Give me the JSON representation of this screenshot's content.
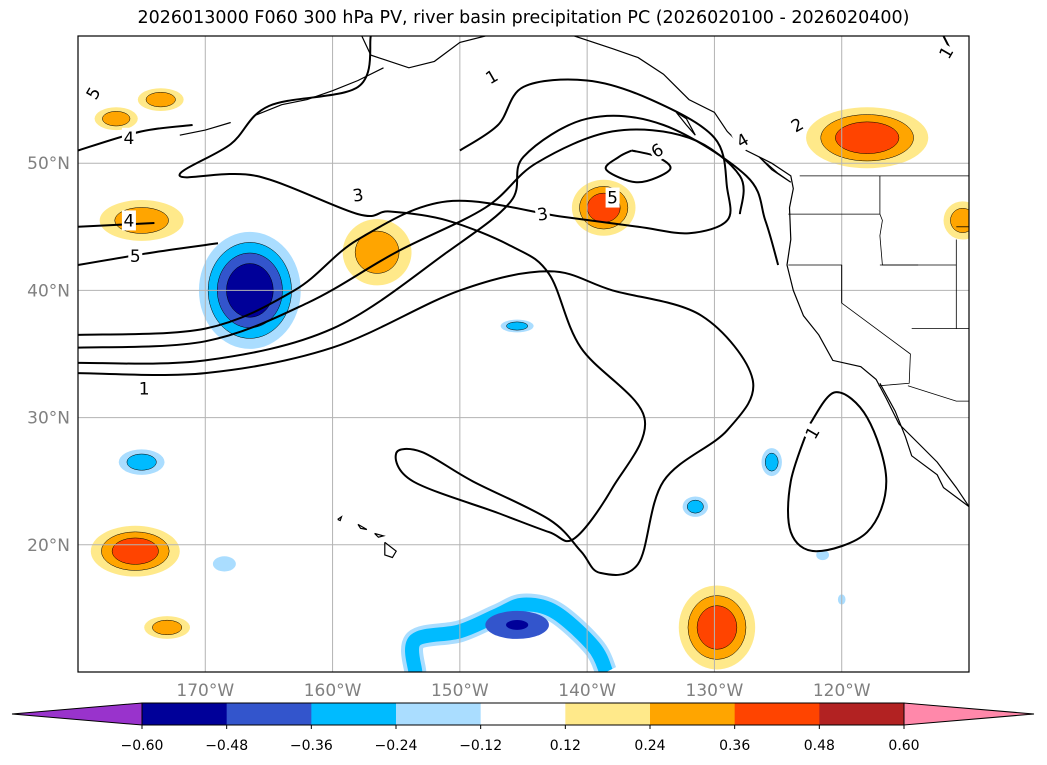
{
  "title": "2026013000 F060 300 hPa PV, river basin precipitation PC (2026020100 - 2026020400)",
  "axes": {
    "lon_min": -180,
    "lon_max": -110,
    "lat_min": 10,
    "lat_max": 60,
    "x_ticks": [
      {
        "value": -170,
        "label": "170°W"
      },
      {
        "value": -160,
        "label": "160°W"
      },
      {
        "value": -150,
        "label": "150°W"
      },
      {
        "value": -140,
        "label": "140°W"
      },
      {
        "value": -130,
        "label": "130°W"
      },
      {
        "value": -120,
        "label": "120°W"
      }
    ],
    "y_ticks": [
      {
        "value": 20,
        "label": "20°N"
      },
      {
        "value": 30,
        "label": "30°N"
      },
      {
        "value": 40,
        "label": "40°N"
      },
      {
        "value": 50,
        "label": "50°N"
      }
    ],
    "grid": true,
    "grid_color": "#b3b3b3"
  },
  "colorbar": {
    "colors": [
      "#9933cc",
      "#000099",
      "#3355cc",
      "#00bbff",
      "#aaddff",
      "#ffffff",
      "#ffe98a",
      "#ffa500",
      "#ff4400",
      "#b22222",
      "#ff88aa"
    ],
    "labels": [
      "−0.60",
      "−0.48",
      "−0.36",
      "−0.24",
      "−0.12",
      "0.12",
      "0.24",
      "0.36",
      "0.48",
      "0.60"
    ]
  },
  "chart_data": {
    "type": "contour_map",
    "pv_contour_labels": [
      {
        "text": "1",
        "lon": -147.5,
        "lat": 56.8,
        "rot": -30
      },
      {
        "text": "2",
        "lon": -123.5,
        "lat": 53.0,
        "rot": -30
      },
      {
        "text": "3",
        "lon": -158.0,
        "lat": 47.5,
        "rot": -8
      },
      {
        "text": "3",
        "lon": -143.5,
        "lat": 46.0,
        "rot": -8
      },
      {
        "text": "4",
        "lon": -176.0,
        "lat": 52.0,
        "rot": 0
      },
      {
        "text": "4",
        "lon": -176.0,
        "lat": 45.5,
        "rot": 0
      },
      {
        "text": "4",
        "lon": -127.8,
        "lat": 51.8,
        "rot": -30
      },
      {
        "text": "5",
        "lon": -175.5,
        "lat": 42.7,
        "rot": 0
      },
      {
        "text": "5",
        "lon": -138.0,
        "lat": 47.3,
        "rot": 0
      },
      {
        "text": "6",
        "lon": -134.5,
        "lat": 51.0,
        "rot": -30
      },
      {
        "text": "1",
        "lon": -174.8,
        "lat": 32.3,
        "rot": 0
      },
      {
        "text": "1",
        "lon": -122.3,
        "lat": 28.8,
        "rot": -60
      },
      {
        "text": "5",
        "lon": -178.8,
        "lat": 55.5,
        "rot": -60
      },
      {
        "text": "1",
        "lon": -111.8,
        "lat": 58.7,
        "rot": -60
      }
    ],
    "pv_contours": [
      [
        [
          -180,
          33.5
        ],
        [
          -170,
          33.5
        ],
        [
          -160,
          35.5
        ],
        [
          -150,
          40
        ],
        [
          -143,
          41.5
        ],
        [
          -138,
          40
        ],
        [
          -131,
          38
        ],
        [
          -127,
          33
        ],
        [
          -129,
          29
        ],
        [
          -134,
          25
        ],
        [
          -136,
          18.5
        ],
        [
          -139,
          17.8
        ],
        [
          -140.5,
          19.5
        ],
        [
          -143,
          22
        ],
        [
          -149,
          25
        ],
        [
          -153,
          27.3
        ],
        [
          -155,
          27.2
        ],
        [
          -153.7,
          25
        ],
        [
          -147,
          22.5
        ],
        [
          -143,
          21
        ],
        [
          -141,
          20.5
        ],
        [
          -138,
          24.5
        ],
        [
          -135.5,
          30
        ],
        [
          -140.5,
          35.5
        ],
        [
          -143,
          41.3
        ],
        [
          -146,
          43.5
        ],
        [
          -151,
          45.5
        ],
        [
          -155.5,
          46.2
        ],
        [
          -158,
          46
        ],
        [
          -166,
          49
        ],
        [
          -172,
          49
        ],
        [
          -168,
          51.5
        ],
        [
          -165,
          54.5
        ],
        [
          -158,
          56
        ],
        [
          -157,
          60
        ]
      ],
      [
        [
          -180,
          34.3
        ],
        [
          -170,
          34.5
        ],
        [
          -160,
          37
        ],
        [
          -151,
          43
        ],
        [
          -146,
          47
        ],
        [
          -145,
          50.5
        ],
        [
          -140,
          53.5
        ],
        [
          -134,
          53
        ],
        [
          -127.5,
          49
        ],
        [
          -126,
          45.5
        ],
        [
          -125,
          42
        ]
      ],
      [
        [
          -180,
          35.5
        ],
        [
          -170,
          36
        ],
        [
          -162,
          39
        ],
        [
          -155,
          43
        ],
        [
          -148,
          46.5
        ],
        [
          -144,
          50
        ],
        [
          -138,
          52.5
        ],
        [
          -132,
          52
        ],
        [
          -128,
          49
        ],
        [
          -128,
          46
        ]
      ],
      [
        [
          -180,
          36.5
        ],
        [
          -170,
          37
        ],
        [
          -163,
          40
        ],
        [
          -158,
          44
        ],
        [
          -151,
          47
        ],
        [
          -142,
          45.8
        ],
        [
          -136,
          45
        ],
        [
          -132,
          44.5
        ],
        [
          -129,
          45.5
        ],
        [
          -129,
          48
        ],
        [
          -130,
          52
        ],
        [
          -135,
          55
        ],
        [
          -140,
          56.5
        ],
        [
          -145,
          56
        ],
        [
          -147,
          53
        ],
        [
          -150,
          51
        ]
      ],
      [
        [
          -180,
          42
        ],
        [
          -174,
          43
        ],
        [
          -169,
          43.7
        ]
      ],
      [
        [
          -180,
          45
        ],
        [
          -174,
          45.3
        ]
      ],
      [
        [
          -180,
          51
        ],
        [
          -175,
          52.5
        ],
        [
          -171,
          53
        ]
      ],
      [
        [
          -136.5,
          51
        ],
        [
          -134.5,
          50.5
        ],
        [
          -133.5,
          49.5
        ],
        [
          -136,
          48.5
        ],
        [
          -138.5,
          49.5
        ],
        [
          -137.5,
          50.5
        ],
        [
          -136.5,
          51
        ]
      ],
      [
        [
          -112,
          60
        ],
        [
          -111.5,
          59
        ]
      ],
      [
        [
          -122.5,
          29.5
        ],
        [
          -124,
          25
        ],
        [
          -124,
          21
        ],
        [
          -122,
          19.5
        ],
        [
          -118,
          21
        ],
        [
          -116.5,
          25
        ],
        [
          -118,
          30
        ],
        [
          -120.5,
          32
        ],
        [
          -122.5,
          29.5
        ]
      ]
    ],
    "precip_pc_blobs": [
      {
        "lon": -177,
        "lat": 53.5,
        "rx": 1.7,
        "ry": 0.9,
        "levels": [
          "#ffe98a",
          "#ffa500"
        ]
      },
      {
        "lon": -173.5,
        "lat": 55,
        "rx": 1.8,
        "ry": 0.9,
        "levels": [
          "#ffe98a",
          "#ffa500"
        ]
      },
      {
        "lon": -175,
        "lat": 45.5,
        "rx": 3.3,
        "ry": 1.6,
        "levels": [
          "#ffe98a",
          "#ffa500"
        ]
      },
      {
        "lon": -166.5,
        "lat": 40,
        "rx": 4.0,
        "ry": 4.6,
        "levels": [
          "#aaddff",
          "#00bbff",
          "#3355cc",
          "#000099"
        ]
      },
      {
        "lon": -156.5,
        "lat": 43,
        "rx": 2.7,
        "ry": 2.6,
        "levels": [
          "#ffe98a",
          "#ffa500"
        ]
      },
      {
        "lon": -138.7,
        "lat": 46.5,
        "rx": 2.5,
        "ry": 2.2,
        "levels": [
          "#ffe98a",
          "#ffa500",
          "#ff4400"
        ]
      },
      {
        "lon": -118,
        "lat": 52,
        "rx": 4.8,
        "ry": 2.4,
        "levels": [
          "#ffe98a",
          "#ffa500",
          "#ff4400"
        ]
      },
      {
        "lon": -110.5,
        "lat": 45.5,
        "rx": 1.5,
        "ry": 1.5,
        "levels": [
          "#ffe98a",
          "#ffa500"
        ]
      },
      {
        "lon": -145.5,
        "lat": 37.2,
        "rx": 1.3,
        "ry": 0.5,
        "levels": [
          "#aaddff",
          "#00bbff"
        ]
      },
      {
        "lon": -175,
        "lat": 26.5,
        "rx": 1.8,
        "ry": 1.0,
        "levels": [
          "#aaddff",
          "#00bbff"
        ]
      },
      {
        "lon": -175.5,
        "lat": 19.5,
        "rx": 3.5,
        "ry": 2.0,
        "levels": [
          "#ffe98a",
          "#ffa500",
          "#ff4400"
        ]
      },
      {
        "lon": -168.5,
        "lat": 18.5,
        "rx": 0.9,
        "ry": 0.6,
        "levels": [
          "#aaddff"
        ]
      },
      {
        "lon": -173,
        "lat": 13.5,
        "rx": 1.8,
        "ry": 0.9,
        "levels": [
          "#ffe98a",
          "#ffa500"
        ]
      },
      {
        "lon": -129.8,
        "lat": 13.5,
        "rx": 3.0,
        "ry": 3.3,
        "levels": [
          "#ffe98a",
          "#ffa500",
          "#ff4400"
        ]
      },
      {
        "lon": -131.5,
        "lat": 23,
        "rx": 1.0,
        "ry": 0.8,
        "levels": [
          "#aaddff",
          "#00bbff"
        ]
      },
      {
        "lon": -125.5,
        "lat": 26.5,
        "rx": 0.8,
        "ry": 1.1,
        "levels": [
          "#aaddff",
          "#00bbff"
        ]
      },
      {
        "lon": -121.5,
        "lat": 19.2,
        "rx": 0.5,
        "ry": 0.4,
        "levels": [
          "#aaddff"
        ]
      },
      {
        "lon": -120,
        "lat": 15.7,
        "rx": 0.3,
        "ry": 0.4,
        "levels": [
          "#aaddff"
        ]
      }
    ],
    "precip_pc_ribbon": {
      "outer": [
        [
          -153.5,
          10
        ],
        [
          -153.5,
          12.5
        ],
        [
          -150,
          13.2
        ],
        [
          -147,
          14.5
        ],
        [
          -145,
          15.3
        ],
        [
          -142.5,
          14.7
        ],
        [
          -139.5,
          12
        ],
        [
          -138.5,
          10
        ]
      ],
      "levels": [
        "#aaddff",
        "#00bbff"
      ],
      "core": {
        "lon": -145.5,
        "lat": 13.7,
        "rx": 2.5,
        "ry": 1.1,
        "levels": [
          "#3355cc",
          "#000099"
        ]
      }
    },
    "coastlines": [
      [
        [
          -157.7,
          60
        ],
        [
          -157,
          58.5
        ],
        [
          -154,
          57.5
        ],
        [
          -152,
          58
        ],
        [
          -150,
          59.5
        ],
        [
          -148,
          60
        ]
      ],
      [
        [
          -141,
          60
        ],
        [
          -138,
          59
        ],
        [
          -136,
          58.3
        ],
        [
          -134,
          57
        ],
        [
          -132,
          55
        ],
        [
          -130,
          54
        ],
        [
          -129,
          52.5
        ],
        [
          -127.5,
          51
        ],
        [
          -125.5,
          50
        ],
        [
          -124,
          49
        ],
        [
          -123.8,
          48
        ],
        [
          -124.1,
          46.5
        ],
        [
          -124,
          44
        ],
        [
          -124.3,
          42
        ],
        [
          -123.8,
          40
        ],
        [
          -123,
          38
        ],
        [
          -121.8,
          36.5
        ],
        [
          -120.7,
          34.5
        ],
        [
          -118.5,
          34
        ],
        [
          -117.3,
          33
        ],
        [
          -116.5,
          31.5
        ],
        [
          -115.5,
          29.5
        ],
        [
          -114,
          28
        ],
        [
          -112.5,
          26.5
        ],
        [
          -111,
          24.5
        ],
        [
          -110,
          23
        ]
      ],
      [
        [
          -117,
          32.7
        ],
        [
          -115.8,
          30.5
        ],
        [
          -115,
          28.5
        ],
        [
          -114.5,
          27
        ],
        [
          -112.5,
          25.5
        ],
        [
          -112,
          24.5
        ],
        [
          -110,
          23
        ]
      ],
      [
        [
          -126.5,
          50.5
        ],
        [
          -125.5,
          49.5
        ],
        [
          -124,
          48.5
        ],
        [
          -125,
          49.2
        ],
        [
          -126.5,
          50.5
        ]
      ],
      [
        [
          -133,
          54
        ],
        [
          -132.2,
          53
        ],
        [
          -131.5,
          52.2
        ],
        [
          -132.2,
          53.5
        ],
        [
          -133,
          54
        ]
      ],
      [
        [
          -166,
          53.8
        ],
        [
          -164,
          54.6
        ],
        [
          -162,
          55
        ],
        [
          -160,
          55.7
        ],
        [
          -158,
          56.5
        ],
        [
          -156,
          57.5
        ]
      ],
      [
        [
          -172,
          52.2
        ],
        [
          -170,
          52.6
        ],
        [
          -168,
          53.2
        ]
      ],
      [
        [
          -155.9,
          20.2
        ],
        [
          -155,
          19.5
        ],
        [
          -155.3,
          19
        ],
        [
          -155.9,
          19.2
        ],
        [
          -155.9,
          20.2
        ]
      ],
      [
        [
          -157.3,
          21.2
        ],
        [
          -158,
          21.6
        ],
        [
          -157.8,
          21.3
        ],
        [
          -157.3,
          21.2
        ]
      ],
      [
        [
          -159.6,
          22
        ],
        [
          -159.3,
          22.2
        ],
        [
          -159.4,
          21.9
        ],
        [
          -159.6,
          22
        ]
      ],
      [
        [
          -156.7,
          20.9
        ],
        [
          -156,
          20.7
        ],
        [
          -156.4,
          20.6
        ],
        [
          -156.7,
          20.9
        ]
      ]
    ],
    "borders": [
      [
        [
          -123.3,
          49
        ],
        [
          -110,
          49
        ]
      ],
      [
        [
          -117,
          49
        ],
        [
          -117,
          46
        ],
        [
          -116.8,
          45.5
        ],
        [
          -117,
          44.3
        ],
        [
          -116.8,
          42
        ],
        [
          -114,
          42
        ]
      ],
      [
        [
          -124.2,
          46
        ],
        [
          -117,
          46
        ]
      ],
      [
        [
          -124.2,
          42
        ],
        [
          -120,
          42
        ],
        [
          -120,
          39
        ],
        [
          -114.6,
          35
        ],
        [
          -114.7,
          32.7
        ],
        [
          -117.1,
          32.5
        ]
      ],
      [
        [
          -117,
          42
        ],
        [
          -111,
          42
        ]
      ],
      [
        [
          -114.5,
          37
        ],
        [
          -110,
          37
        ]
      ],
      [
        [
          -120,
          42
        ],
        [
          -120,
          39
        ]
      ],
      [
        [
          -111,
          45
        ],
        [
          -110,
          45
        ]
      ],
      [
        [
          -114.8,
          32.5
        ],
        [
          -111,
          31.3
        ],
        [
          -110,
          31.3
        ]
      ],
      [
        [
          -111,
          44
        ],
        [
          -111,
          37
        ]
      ]
    ]
  }
}
